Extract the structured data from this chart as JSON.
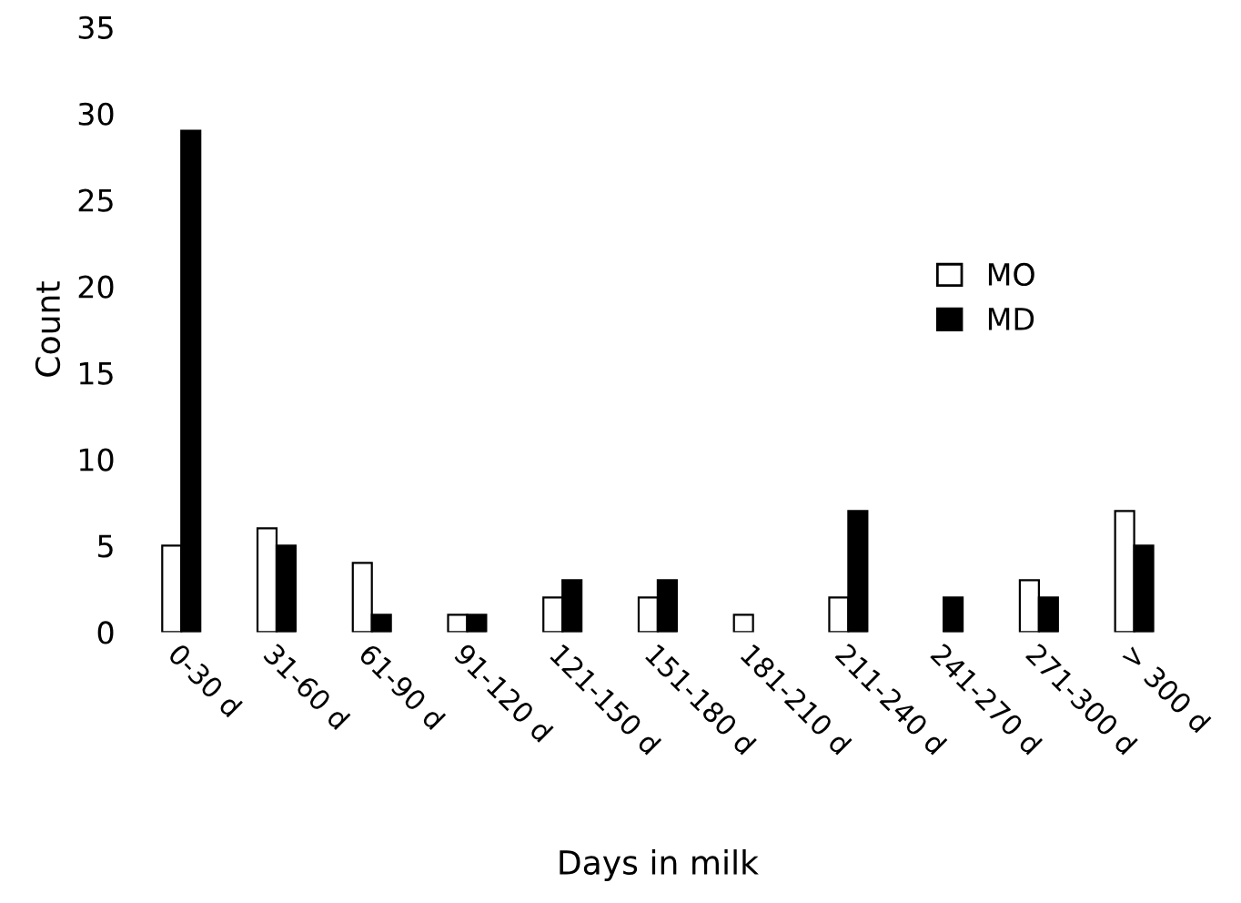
{
  "chart_data": {
    "type": "bar",
    "xlabel": "Days in milk",
    "ylabel": "Count",
    "categories": [
      "0-30 d",
      "31-60 d",
      "61-90 d",
      "91-120 d",
      "121-150 d",
      "151-180 d",
      "181-210 d",
      "211-240 d",
      "241-270 d",
      "271-300 d",
      "> 300 d"
    ],
    "series": [
      {
        "name": "MO",
        "color": "#ffffff",
        "values": [
          5,
          6,
          4,
          1,
          2,
          2,
          1,
          2,
          0,
          3,
          7
        ]
      },
      {
        "name": "MD",
        "color": "#000000",
        "values": [
          29,
          5,
          1,
          1,
          3,
          3,
          0,
          7,
          2,
          2,
          5
        ]
      }
    ],
    "ylim": [
      0,
      35
    ],
    "yticks": [
      0,
      5,
      10,
      15,
      20,
      25,
      30,
      35
    ],
    "grid": false,
    "legend": "right"
  }
}
